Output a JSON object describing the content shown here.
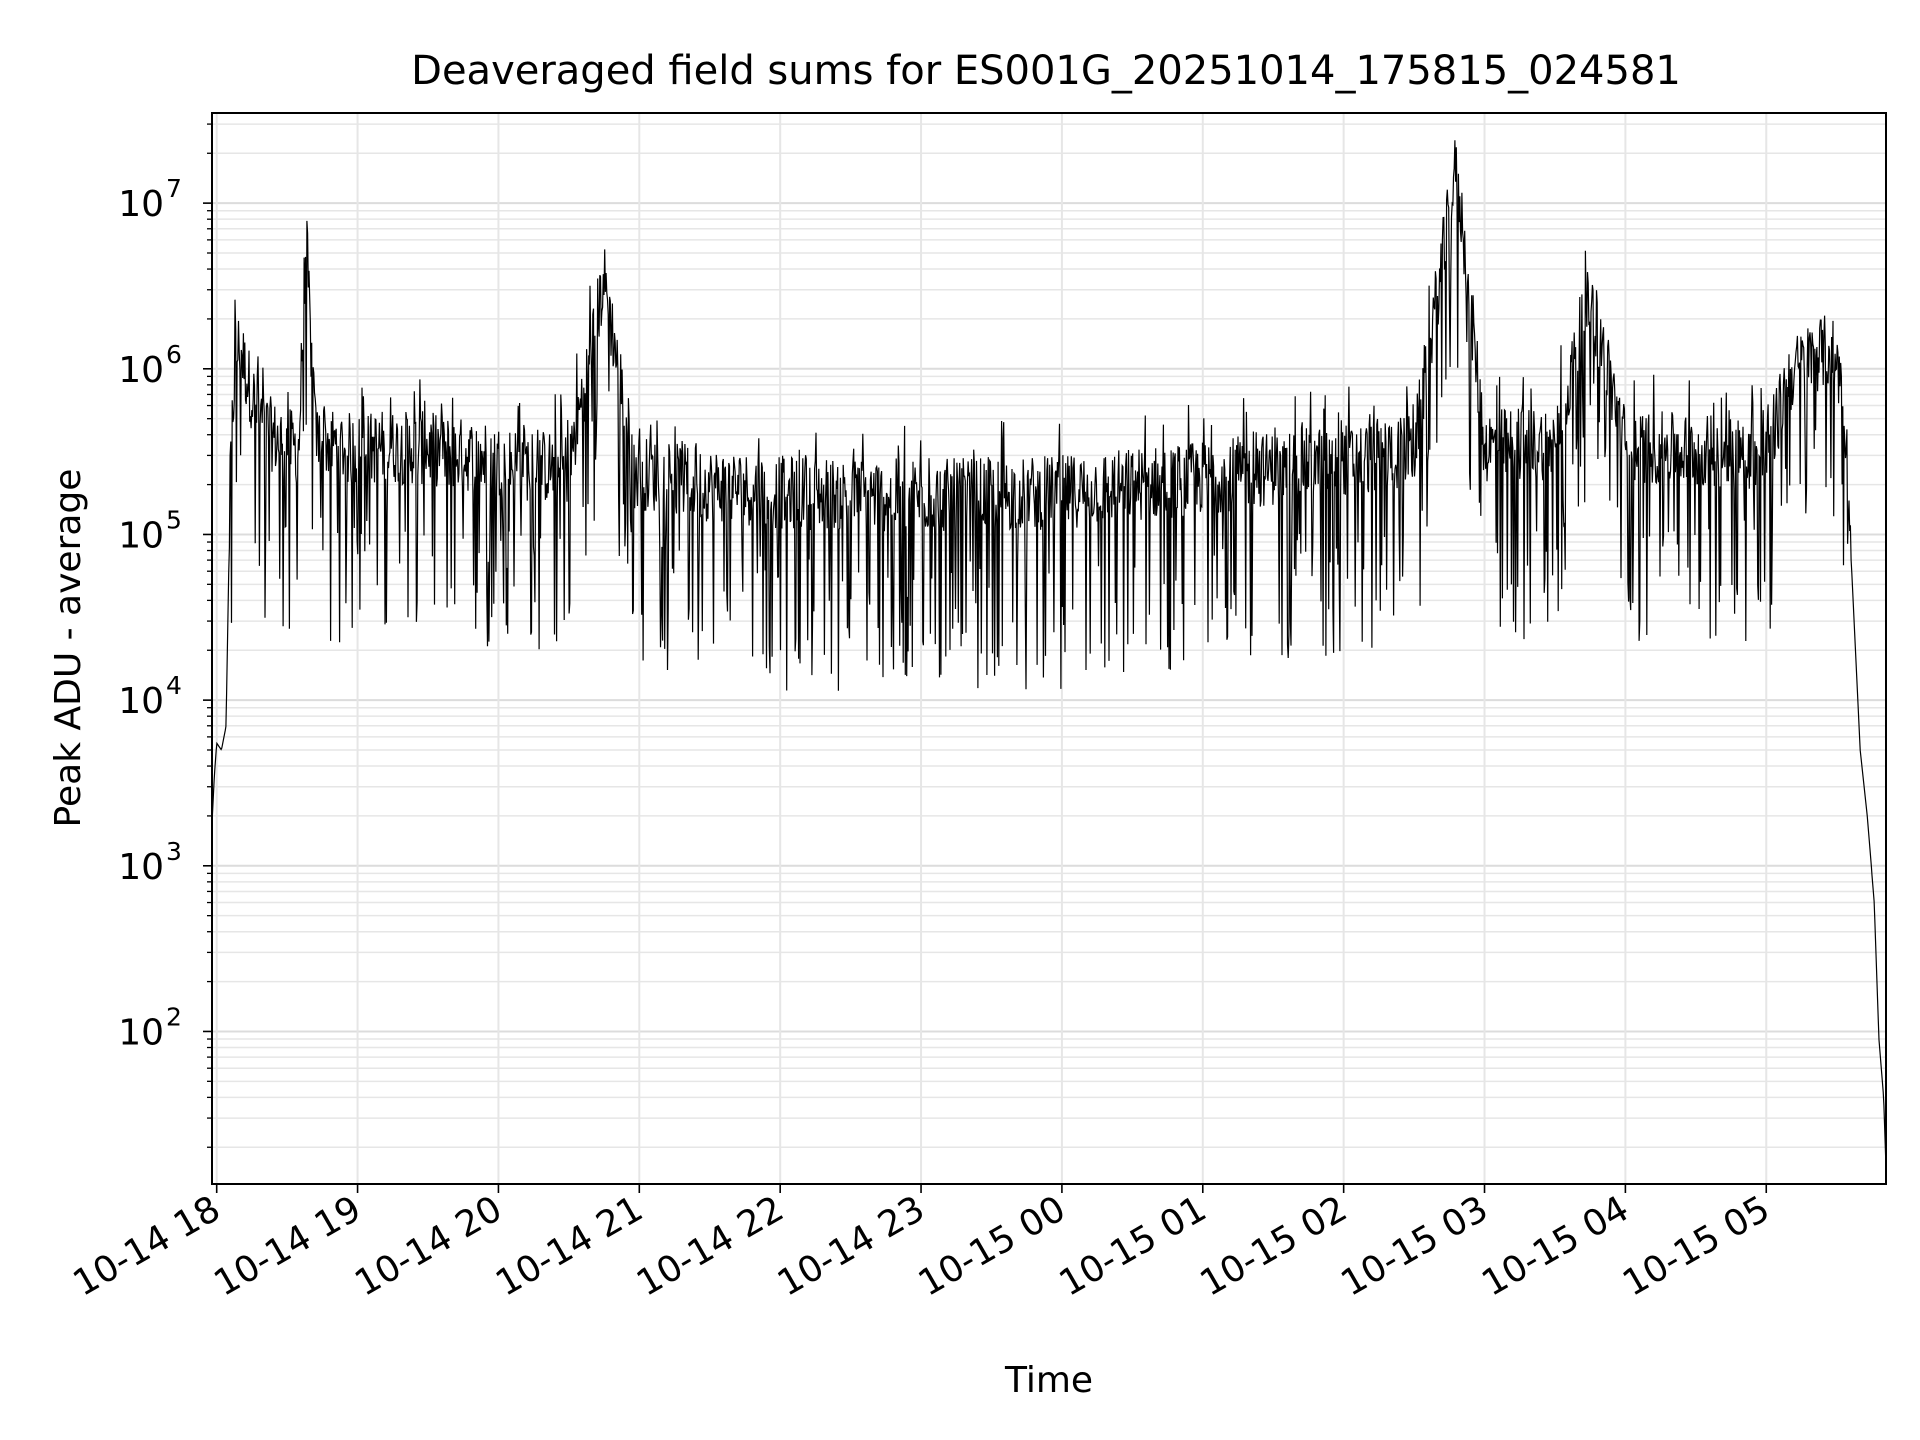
{
  "chart_data": {
    "type": "line",
    "title": "Deaveraged field sums for ES001G_20251014_175815_024581",
    "xlabel": "Time",
    "ylabel": "Peak ADU - average",
    "yscale": "log",
    "grid": true,
    "xlim": [
      "2025-10-14 17:58",
      "2025-10-15 05:51"
    ],
    "ylim": [
      12,
      35000000
    ],
    "x_ticks": [
      "10-14 18",
      "10-14 19",
      "10-14 20",
      "10-14 21",
      "10-14 22",
      "10-14 23",
      "10-15 00",
      "10-15 01",
      "10-15 02",
      "10-15 03",
      "10-15 04",
      "10-15 05"
    ],
    "y_ticks": [
      {
        "value": 100,
        "base": "10",
        "exp": "2"
      },
      {
        "value": 1000,
        "base": "10",
        "exp": "3"
      },
      {
        "value": 10000,
        "base": "10",
        "exp": "4"
      },
      {
        "value": 100000,
        "base": "10",
        "exp": "5"
      },
      {
        "value": 1000000,
        "base": "10",
        "exp": "6"
      },
      {
        "value": 10000000,
        "base": "10",
        "exp": "7"
      }
    ],
    "line_color": "#000000",
    "series": [
      {
        "x": [
          "2025-10-14 17:58",
          "2025-10-14 17:59",
          "2025-10-14 18:00",
          "2025-10-14 18:02",
          "2025-10-14 18:04",
          "2025-10-14 18:06",
          "2025-10-14 18:08",
          "2025-10-14 18:10",
          "2025-10-14 18:12",
          "2025-10-14 18:15",
          "2025-10-14 18:20",
          "2025-10-14 18:25",
          "2025-10-14 18:30",
          "2025-10-14 18:35",
          "2025-10-14 18:38",
          "2025-10-14 18:42",
          "2025-10-14 18:50",
          "2025-10-14 18:59",
          "2025-10-14 19:10",
          "2025-10-14 19:30",
          "2025-10-14 19:47",
          "2025-10-14 20:00",
          "2025-10-14 20:15",
          "2025-10-14 20:30",
          "2025-10-14 20:45",
          "2025-10-14 20:58",
          "2025-10-14 21:10",
          "2025-10-14 21:30",
          "2025-10-14 21:45",
          "2025-10-14 22:00",
          "2025-10-14 22:30",
          "2025-10-14 23:00",
          "2025-10-14 23:30",
          "2025-10-15 00:00",
          "2025-10-15 00:30",
          "2025-10-15 01:00",
          "2025-10-15 01:30",
          "2025-10-15 02:00",
          "2025-10-15 02:30",
          "2025-10-15 02:48",
          "2025-10-15 03:00",
          "2025-10-15 03:15",
          "2025-10-15 03:30",
          "2025-10-15 03:45",
          "2025-10-15 04:00",
          "2025-10-15 04:15",
          "2025-10-15 04:30",
          "2025-10-15 04:45",
          "2025-10-15 05:00",
          "2025-10-15 05:10",
          "2025-10-15 05:20",
          "2025-10-15 05:28",
          "2025-10-15 05:33",
          "2025-10-15 05:36",
          "2025-10-15 05:40",
          "2025-10-15 05:43",
          "2025-10-15 05:46",
          "2025-10-15 05:48",
          "2025-10-15 05:50",
          "2025-10-15 05:51"
        ],
        "y": [
          1800,
          3500,
          5500,
          5000,
          7000,
          300000,
          1200000,
          1400000,
          1000000,
          700000,
          450000,
          380000,
          350000,
          330000,
          6500000,
          380000,
          350000,
          320000,
          340000,
          330000,
          300000,
          280000,
          260000,
          250000,
          3500000,
          240000,
          220000,
          200000,
          190000,
          180000,
          175000,
          170000,
          175000,
          180000,
          200000,
          220000,
          250000,
          280000,
          320000,
          17000000,
          340000,
          350000,
          360000,
          2700000,
          350000,
          330000,
          320000,
          310000,
          300000,
          900000,
          1200000,
          1300000,
          800000,
          80000,
          5000,
          2000,
          600,
          90,
          40,
          15
        ]
      }
    ]
  }
}
